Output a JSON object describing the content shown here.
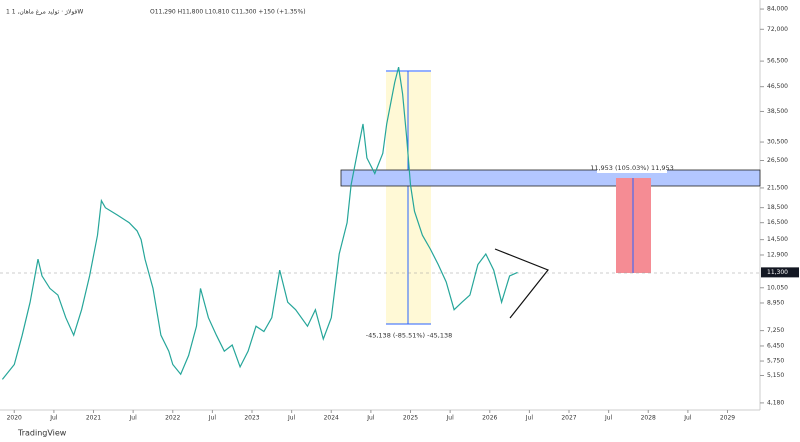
{
  "header": {
    "symbol": "1 فولاژ · تولید مرغ ماهان, 1W",
    "ohlc": "O11,290 H11,800 L10,810 C11,300 +150 (+1.35%)"
  },
  "chart_data": {
    "type": "line",
    "color": "#26a69a",
    "log_scale": true,
    "x": [
      2019.85,
      2020.0,
      2020.1,
      2020.2,
      2020.3,
      2020.35,
      2020.45,
      2020.55,
      2020.65,
      2020.75,
      2020.85,
      2020.95,
      2021.05,
      2021.1,
      2021.15,
      2021.3,
      2021.45,
      2021.55,
      2021.6,
      2021.65,
      2021.75,
      2021.85,
      2021.95,
      2022.0,
      2022.1,
      2022.2,
      2022.3,
      2022.35,
      2022.45,
      2022.55,
      2022.65,
      2022.75,
      2022.85,
      2022.95,
      2023.05,
      2023.15,
      2023.25,
      2023.35,
      2023.45,
      2023.55,
      2023.7,
      2023.8,
      2023.9,
      2024.0,
      2024.1,
      2024.2,
      2024.25,
      2024.35,
      2024.4,
      2024.45,
      2024.55,
      2024.65,
      2024.7,
      2024.8,
      2024.85,
      2024.9,
      2024.95,
      2025.0,
      2025.05,
      2025.15,
      2025.25,
      2025.35,
      2025.45,
      2025.55,
      2025.65,
      2025.75,
      2025.85,
      2025.95,
      2026.05,
      2026.15,
      2026.25,
      2026.35
    ],
    "values": [
      5000,
      5600,
      7000,
      9000,
      12500,
      11000,
      10000,
      9500,
      8000,
      7000,
      8500,
      11000,
      15000,
      19500,
      18500,
      17500,
      16500,
      15500,
      14500,
      12500,
      10000,
      7000,
      6200,
      5600,
      5200,
      6000,
      7500,
      10000,
      8000,
      7000,
      6200,
      6500,
      5500,
      6200,
      7500,
      7200,
      8000,
      11500,
      9000,
      8500,
      7500,
      8500,
      6800,
      8000,
      13000,
      16500,
      22000,
      30000,
      35000,
      27000,
      24000,
      28000,
      35000,
      48000,
      54000,
      44000,
      32000,
      22000,
      18000,
      15000,
      13500,
      12000,
      10500,
      8500,
      9000,
      9500,
      12000,
      13000,
      11500,
      9000,
      11000,
      11300
    ],
    "xlim": [
      2019.82,
      2029.41
    ],
    "xticks": [
      2020,
      {
        "value": 2020.5,
        "label": "Jul"
      },
      2021,
      {
        "value": 2021.5,
        "label": "Jul"
      },
      2022,
      {
        "value": 2022.5,
        "label": "Jul"
      },
      2023,
      {
        "value": 2023.5,
        "label": "Jul"
      },
      2024,
      {
        "value": 2024.5,
        "label": "Jul"
      },
      2025,
      {
        "value": 2025.5,
        "label": "Jul"
      },
      2026,
      {
        "value": 2026.5,
        "label": "Jul"
      },
      2027,
      {
        "value": 2027.5,
        "label": "Jul"
      },
      2028,
      {
        "value": 2028.5,
        "label": "Jul"
      },
      2029
    ],
    "ylim": [
      3960,
      90000
    ],
    "yticks": [
      {
        "value": 84000,
        "label": "84,000"
      },
      {
        "value": 72000,
        "label": "72,000"
      },
      {
        "value": 56500,
        "label": "56,500"
      },
      {
        "value": 46500,
        "label": "46,500"
      },
      {
        "value": 38500,
        "label": "38,500"
      },
      {
        "value": 30500,
        "label": "30,500"
      },
      {
        "value": 26500,
        "label": "26,500"
      },
      {
        "value": 21500,
        "label": "21,500"
      },
      {
        "value": 18500,
        "label": "18,500"
      },
      {
        "value": 16500,
        "label": "16,500"
      },
      {
        "value": 14500,
        "label": "14,500"
      },
      {
        "value": 12900,
        "label": "12,900"
      },
      {
        "value": 10050,
        "label": "10,050"
      },
      {
        "value": 8950,
        "label": "8,950"
      },
      {
        "value": 7250,
        "label": "7,250"
      },
      {
        "value": 6450,
        "label": "6,450"
      },
      {
        "value": 5750,
        "label": "5,750"
      },
      {
        "value": 5150,
        "label": "5,150"
      },
      {
        "value": 4180,
        "label": "4,180"
      }
    ],
    "last_price": {
      "value": 11300,
      "label": "11,300"
    },
    "annotations": [
      "-45,138 (-85.51%) -45,138",
      "11,953 (105.03%) 11,953"
    ]
  },
  "footer": "TradingView"
}
